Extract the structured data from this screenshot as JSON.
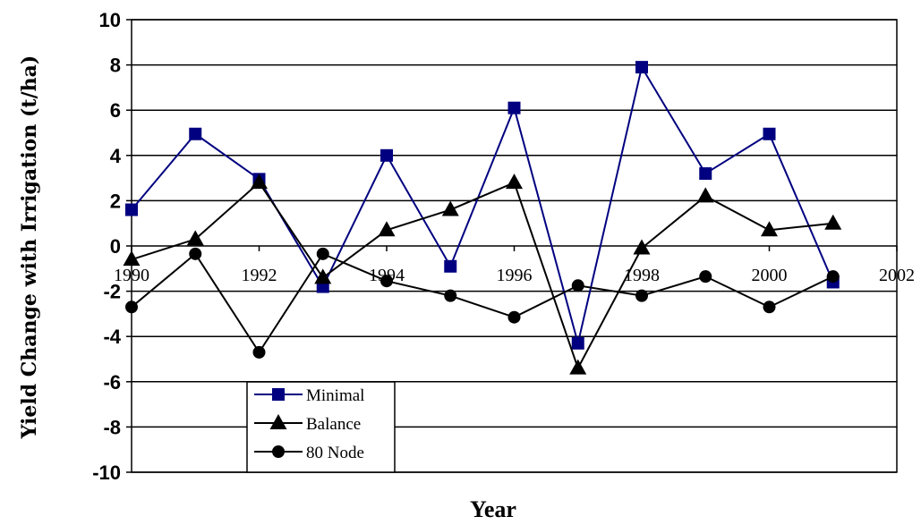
{
  "chart_data": {
    "type": "line",
    "xlabel": "Year",
    "ylabel": "Yield Change with Irrigation (t/ha)",
    "xlim": [
      1990,
      2002
    ],
    "ylim": [
      -10,
      10
    ],
    "x_ticks": [
      "1990",
      "1992",
      "1994",
      "1996",
      "1998",
      "2000",
      "2002"
    ],
    "y_ticks": [
      "10",
      "8",
      "6",
      "4",
      "2",
      "0",
      "-2",
      "-4",
      "-6",
      "-8",
      "-10"
    ],
    "grid": "horizontal",
    "legend_position": "bottom-left",
    "series": [
      {
        "name": "Minimal",
        "marker": "square",
        "color": "#000080",
        "x": [
          1990,
          1991,
          1992,
          1993,
          1994,
          1995,
          1996,
          1997,
          1998,
          1999,
          2000,
          2001
        ],
        "y": [
          1.6,
          4.95,
          2.95,
          -1.8,
          4.0,
          -0.9,
          6.1,
          -4.3,
          7.9,
          3.2,
          4.95,
          -1.6
        ]
      },
      {
        "name": "Balance",
        "marker": "triangle",
        "color": "#000000",
        "x": [
          1990,
          1991,
          1992,
          1993,
          1994,
          1995,
          1996,
          1997,
          1998,
          1999,
          2000,
          2001
        ],
        "y": [
          -0.6,
          0.3,
          2.8,
          -1.4,
          0.7,
          1.6,
          2.8,
          -5.4,
          -0.1,
          2.2,
          0.7,
          1.0
        ]
      },
      {
        "name": "80 Node",
        "marker": "circle",
        "color": "#000000",
        "x": [
          1990,
          1991,
          1992,
          1993,
          1994,
          1995,
          1996,
          1997,
          1998,
          1999,
          2000,
          2001
        ],
        "y": [
          -2.7,
          -0.35,
          -4.7,
          -0.35,
          -1.55,
          -2.2,
          -3.15,
          -1.75,
          -2.2,
          -1.35,
          -2.7,
          -1.35
        ]
      }
    ]
  }
}
